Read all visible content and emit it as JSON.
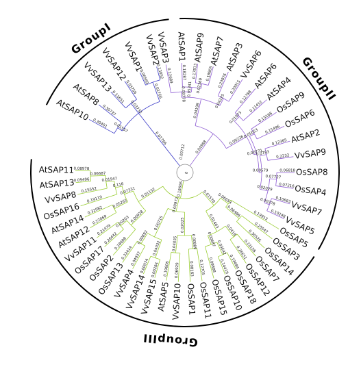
{
  "colors": {
    "group_i": "#3c3cc8",
    "group_ii": "#8c5ad2",
    "group_iii": "#9acd32",
    "root": "#888888",
    "arc": "#000000"
  },
  "groups": [
    {
      "id": "group_i",
      "label": "GroupI"
    },
    {
      "id": "group_ii",
      "label": "GroupII"
    },
    {
      "id": "group_iii",
      "label": "GroupIII"
    }
  ],
  "tree": {
    "root_values": [
      "0",
      "0.00712"
    ],
    "leaves": [
      {
        "name": "VvSAP2",
        "branch": "0.13852",
        "group": "group_i"
      },
      {
        "name": "VvSAP1",
        "branch": "0.06569",
        "group": "group_i"
      },
      {
        "name": "VvSAP12",
        "branch": "0.03759",
        "group": "group_i"
      },
      {
        "name": "VvSAP13",
        "branch": "0.11651",
        "group": "group_i"
      },
      {
        "name": "AtSAP8",
        "branch": "0.30737",
        "group": "group_i"
      },
      {
        "name": "AtSAP10",
        "branch": "0.30401",
        "group": "group_i"
      },
      {
        "name": "VvSAP3",
        "branch": "0.12689",
        "group": "group_ii"
      },
      {
        "name": "AtSAP1",
        "branch": "0.18287",
        "group": "group_ii"
      },
      {
        "name": "AtSAP9",
        "branch": "0.17813",
        "group": "group_ii"
      },
      {
        "name": "AtSAP7",
        "branch": "0.18865",
        "group": "group_ii"
      },
      {
        "name": "AtSAP3",
        "branch": "0.23876",
        "group": "group_ii"
      },
      {
        "name": "VvSAP6",
        "branch": "0.20015",
        "group": "group_ii"
      },
      {
        "name": "AtSAP6",
        "branch": "0.12788",
        "group": "group_ii"
      },
      {
        "name": "AtSAP4",
        "branch": "0.11452",
        "group": "group_ii"
      },
      {
        "name": "OsSAP9",
        "branch": "0.15168",
        "group": "group_ii"
      },
      {
        "name": "OsSAP6",
        "branch": "0.15496",
        "group": "group_ii"
      },
      {
        "name": "AtSAP2",
        "branch": "0.12365",
        "group": "group_ii"
      },
      {
        "name": "VvSAP9",
        "branch": "0.2232",
        "group": "group_ii"
      },
      {
        "name": "OsSAP8",
        "branch": "0.06818",
        "group": "group_ii"
      },
      {
        "name": "OsSAP4",
        "branch": "0.07216",
        "group": "group_ii"
      },
      {
        "name": "VvSAP7",
        "branch": "0.10683",
        "group": "group_ii"
      },
      {
        "name": "VvSAP5",
        "branch": "0.10248",
        "group": "group_ii"
      },
      {
        "name": "OsSAP5",
        "branch": "0.19913",
        "group": "group_iii"
      },
      {
        "name": "OsSAP3",
        "branch": "0.25547",
        "group": "group_iii"
      },
      {
        "name": "OsSAP14",
        "branch": "0.30526",
        "group": "group_iii"
      },
      {
        "name": "OsSAP7",
        "branch": "0.23158",
        "group": "group_iii"
      },
      {
        "name": "OsSAP12",
        "branch": "0.26651",
        "group": "group_iii"
      },
      {
        "name": "OsSAP18",
        "branch": "0.19484",
        "group": "group_iii"
      },
      {
        "name": "OsSAP10",
        "branch": "0.14419",
        "group": "group_iii"
      },
      {
        "name": "OsSAP15",
        "branch": "0.09888",
        "group": "group_iii"
      },
      {
        "name": "OsSAP11",
        "branch": "0.12705",
        "group": "group_iii"
      },
      {
        "name": "OsSAP1",
        "branch": "0.08163",
        "group": "group_iii"
      },
      {
        "name": "VvSAP10",
        "branch": "0.06929",
        "group": "group_iii"
      },
      {
        "name": "AtSAP5",
        "branch": "0.19606",
        "group": "group_iii"
      },
      {
        "name": "VvSAP15",
        "branch": "0.00284",
        "group": "group_iii"
      },
      {
        "name": "VvSAP14",
        "branch": "0.00074",
        "group": "group_iii"
      },
      {
        "name": "VvSAP4",
        "branch": "0.04937",
        "group": "group_iii"
      },
      {
        "name": "OsSAP13",
        "branch": "0.32414",
        "group": "group_iii"
      },
      {
        "name": "OsSAP2",
        "branch": "0.18698",
        "group": "group_iii"
      },
      {
        "name": "OsSAP17",
        "branch": "0.26442",
        "group": "group_iii"
      },
      {
        "name": "VvSAP11",
        "branch": "0.21479",
        "group": "group_iii"
      },
      {
        "name": "AtSAP12",
        "branch": "0.22069",
        "group": "group_iii"
      },
      {
        "name": "AtSAP14",
        "branch": "0.32082",
        "group": "group_iii"
      },
      {
        "name": "OsSAP16",
        "branch": "0.19119",
        "group": "group_iii"
      },
      {
        "name": "VvSAP8",
        "branch": "0.15552",
        "group": "group_iii"
      },
      {
        "name": "AtSAP13",
        "branch": "0.09496",
        "group": "group_iii"
      },
      {
        "name": "AtSAP11",
        "branch": "0.08978",
        "group": "group_iii"
      }
    ],
    "internal_values": [
      "0.01766",
      "0.01557",
      "0.03732",
      "0.04988",
      "0.09226",
      "0.04198",
      "0.08778",
      "0.05341",
      "0.02369",
      "0.00771",
      "0.04225",
      "0.00579",
      "0.01073",
      "0.0783",
      "0.05053",
      "0.02029",
      "0.00378",
      "0.07727",
      "0.00972",
      "0.06653",
      "0.01578",
      "0.01463",
      "0.06986",
      "0.0418",
      "0.03642",
      "0.00687",
      "0.00715",
      "0.00889",
      "0.02025",
      "0.04035",
      "0.00892",
      "0.04032",
      "0.01152",
      "0.00928",
      "0.00203",
      "0.18606",
      "0.02936",
      "0.05261",
      "0.07331",
      "0.116",
      "0.01947",
      "0.06687"
    ]
  }
}
